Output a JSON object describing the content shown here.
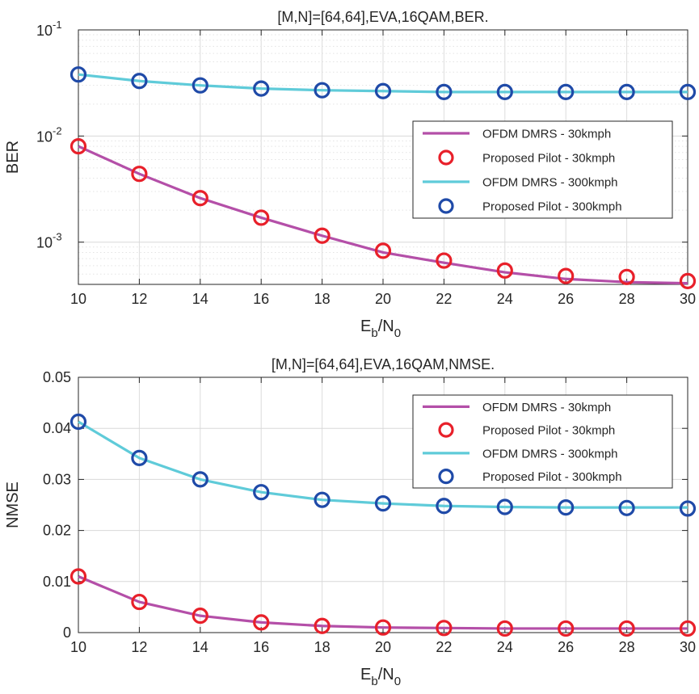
{
  "colors": {
    "ofdm_30": "#b44fa8",
    "pilot_30": "#e8202a",
    "ofdm_300": "#5fcbd9",
    "pilot_300": "#1f4aa8"
  },
  "chart_data": [
    {
      "type": "line",
      "title": "[M,N]=[64,64],EVA,16QAM,BER.",
      "xlabel_main": "E",
      "xlabel_sub1": "b",
      "xlabel_mid": "/N",
      "xlabel_sub2": "0",
      "ylabel": "BER",
      "yscale": "log",
      "xlim": [
        10,
        30
      ],
      "ylim": [
        0.0004,
        0.1
      ],
      "x": [
        10,
        12,
        14,
        16,
        18,
        20,
        22,
        24,
        26,
        28,
        30
      ],
      "xticks": [
        "10",
        "12",
        "14",
        "16",
        "18",
        "20",
        "22",
        "24",
        "26",
        "28",
        "30"
      ],
      "yticks": [
        {
          "value": 0.001,
          "base": "10",
          "exp": "-3"
        },
        {
          "value": 0.01,
          "base": "10",
          "exp": "-2"
        },
        {
          "value": 0.1,
          "base": "10",
          "exp": "-1"
        }
      ],
      "grid": true,
      "legend_position": "center-right",
      "series": [
        {
          "name": "OFDM DMRS - 30kmph",
          "style": "line",
          "color": "#b44fa8",
          "values": [
            0.008,
            0.0044,
            0.0026,
            0.0017,
            0.00115,
            0.0008,
            0.00064,
            0.00052,
            0.00045,
            0.00042,
            0.00041
          ]
        },
        {
          "name": "Proposed Pilot - 30kmph",
          "style": "marker",
          "color": "#e8202a",
          "values": [
            0.008,
            0.0044,
            0.0026,
            0.0017,
            0.00115,
            0.00083,
            0.00067,
            0.00054,
            0.00048,
            0.00047,
            0.00043
          ]
        },
        {
          "name": "OFDM DMRS - 300kmph",
          "style": "line",
          "color": "#5fcbd9",
          "values": [
            0.038,
            0.033,
            0.03,
            0.028,
            0.027,
            0.0265,
            0.026,
            0.026,
            0.026,
            0.026,
            0.026
          ]
        },
        {
          "name": "Proposed Pilot - 300kmph",
          "style": "marker",
          "color": "#1f4aa8",
          "values": [
            0.038,
            0.033,
            0.03,
            0.028,
            0.027,
            0.0265,
            0.026,
            0.026,
            0.026,
            0.026,
            0.026
          ]
        }
      ]
    },
    {
      "type": "line",
      "title": "[M,N]=[64,64],EVA,16QAM,NMSE.",
      "xlabel_main": "E",
      "xlabel_sub1": "b",
      "xlabel_mid": "/N",
      "xlabel_sub2": "0",
      "ylabel": "NMSE",
      "yscale": "linear",
      "xlim": [
        10,
        30
      ],
      "ylim": [
        0,
        0.05
      ],
      "x": [
        10,
        12,
        14,
        16,
        18,
        20,
        22,
        24,
        26,
        28,
        30
      ],
      "xticks": [
        "10",
        "12",
        "14",
        "16",
        "18",
        "20",
        "22",
        "24",
        "26",
        "28",
        "30"
      ],
      "yticks": [
        {
          "value": 0,
          "label": "0"
        },
        {
          "value": 0.01,
          "label": "0.01"
        },
        {
          "value": 0.02,
          "label": "0.02"
        },
        {
          "value": 0.03,
          "label": "0.03"
        },
        {
          "value": 0.04,
          "label": "0.04"
        },
        {
          "value": 0.05,
          "label": "0.05"
        }
      ],
      "grid": true,
      "legend_position": "top-right",
      "series": [
        {
          "name": "OFDM DMRS - 30kmph",
          "style": "line",
          "color": "#b44fa8",
          "values": [
            0.011,
            0.006,
            0.0033,
            0.002,
            0.0013,
            0.001,
            0.0009,
            0.0008,
            0.0008,
            0.0008,
            0.0008
          ]
        },
        {
          "name": "Proposed Pilot - 30kmph",
          "style": "marker",
          "color": "#e8202a",
          "values": [
            0.011,
            0.006,
            0.0033,
            0.002,
            0.0013,
            0.001,
            0.0009,
            0.0008,
            0.0008,
            0.0008,
            0.0008
          ]
        },
        {
          "name": "OFDM DMRS - 300kmph",
          "style": "line",
          "color": "#5fcbd9",
          "values": [
            0.0413,
            0.0342,
            0.03,
            0.0275,
            0.026,
            0.0253,
            0.0248,
            0.0246,
            0.0245,
            0.0245,
            0.0245
          ]
        },
        {
          "name": "Proposed Pilot - 300kmph",
          "style": "marker",
          "color": "#1f4aa8",
          "values": [
            0.0413,
            0.0342,
            0.03,
            0.0275,
            0.026,
            0.0253,
            0.0248,
            0.0246,
            0.0245,
            0.0244,
            0.0243
          ]
        }
      ]
    }
  ]
}
